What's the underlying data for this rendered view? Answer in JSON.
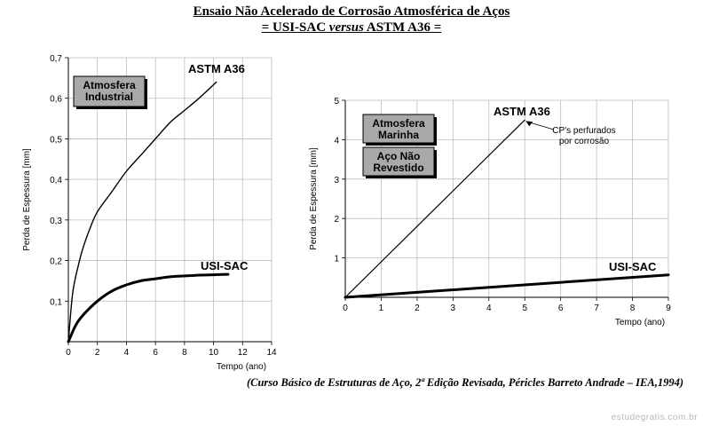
{
  "title_line1": "Ensaio Não Acelerado de Corrosão Atmosférica de Aços",
  "title_line2": {
    "prefix": "= USI-SAC ",
    "italic": "versus",
    "suffix": " ASTM A36 ="
  },
  "citation": "(Curso Básico de Estruturas de Aço, 2ª Edição Revisada, Péricles Barreto Andrade – IEA,1994)",
  "watermark": "estudegratis.com.br",
  "chart_data": [
    {
      "type": "line",
      "ylabel": "Perda de Espessura [mm]",
      "xlabel": "Tempo (ano)",
      "xlim": [
        0,
        14
      ],
      "ylim": [
        0,
        0.7
      ],
      "xticks": [
        0,
        2,
        4,
        6,
        8,
        10,
        12,
        14
      ],
      "yticks": [
        0.1,
        0.2,
        0.3,
        0.4,
        0.5,
        0.6,
        0.7
      ],
      "xtick_labels": [
        "0",
        "2",
        "4",
        "6",
        "8",
        "10",
        "12",
        "14"
      ],
      "ytick_labels": [
        "0,1",
        "0,2",
        "0,3",
        "0,4",
        "0,5",
        "0,6",
        "0,7"
      ],
      "grid": true,
      "box_labels": [
        [
          "Atmosfera",
          "Industrial"
        ]
      ],
      "series": [
        {
          "name": "ASTM A36",
          "line_width": 1.4,
          "x": [
            0,
            0.3,
            0.7,
            1,
            1.5,
            2,
            3,
            4,
            5,
            6,
            7,
            8,
            9,
            10.2
          ],
          "y": [
            0.0,
            0.12,
            0.19,
            0.23,
            0.28,
            0.32,
            0.37,
            0.42,
            0.46,
            0.5,
            0.54,
            0.57,
            0.6,
            0.64
          ]
        },
        {
          "name": "USI-SAC",
          "line_width": 3,
          "x": [
            0,
            0.5,
            1,
            2,
            3,
            4,
            5,
            6,
            7,
            8,
            9,
            10,
            11
          ],
          "y": [
            0.0,
            0.04,
            0.065,
            0.1,
            0.125,
            0.14,
            0.15,
            0.155,
            0.16,
            0.162,
            0.164,
            0.165,
            0.166
          ]
        }
      ]
    },
    {
      "type": "line",
      "ylabel": "Perda de Espessura [mm]",
      "xlabel": "Tempo (ano)",
      "xlim": [
        0,
        9
      ],
      "ylim": [
        0,
        5
      ],
      "xticks": [
        0,
        1,
        2,
        3,
        4,
        5,
        6,
        7,
        8,
        9
      ],
      "yticks": [
        1,
        2,
        3,
        4,
        5
      ],
      "xtick_labels": [
        "0",
        "1",
        "2",
        "3",
        "4",
        "5",
        "6",
        "7",
        "8",
        "9"
      ],
      "ytick_labels": [
        "1",
        "2",
        "3",
        "4",
        "5"
      ],
      "grid": true,
      "box_labels": [
        [
          "Atmosfera",
          "Marinha"
        ],
        [
          "Aço Não",
          "Revestido"
        ]
      ],
      "annotation": [
        "CP's perfurados",
        "por corrosão"
      ],
      "series": [
        {
          "name": "ASTM A36",
          "line_width": 1.2,
          "x": [
            0,
            5
          ],
          "y": [
            0,
            4.5
          ]
        },
        {
          "name": "USI-SAC",
          "line_width": 3,
          "x": [
            0,
            9
          ],
          "y": [
            0,
            0.57
          ]
        }
      ]
    }
  ]
}
